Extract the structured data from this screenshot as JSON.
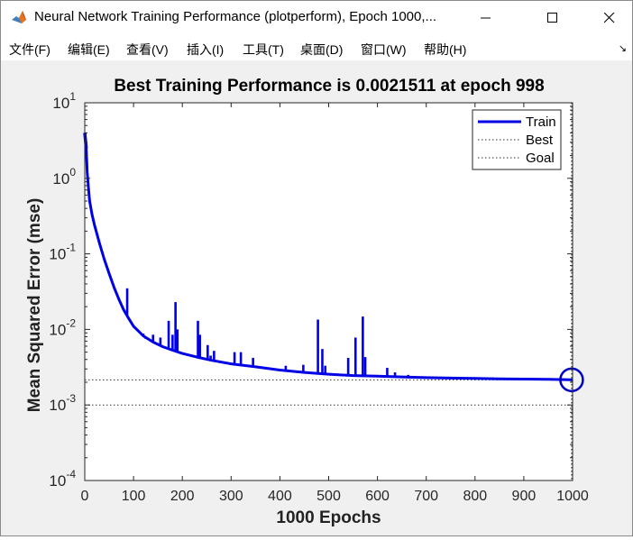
{
  "window": {
    "title": "Neural Network Training Performance (plotperform), Epoch 1000,...",
    "icon": "matlab-icon"
  },
  "menu": {
    "items": [
      "文件(F)",
      "编辑(E)",
      "查看(V)",
      "插入(I)",
      "工具(T)",
      "桌面(D)",
      "窗口(W)",
      "帮助(H)"
    ]
  },
  "colors": {
    "train": "#0000e6",
    "axes_bg": "#ffffff",
    "figure_bg": "#f0f0f0"
  },
  "chart_data": {
    "type": "line",
    "title": "Best Training Performance is 0.0021511 at epoch 998",
    "xlabel": "1000 Epochs",
    "ylabel": "Mean Squared Error  (mse)",
    "xlim": [
      0,
      1000
    ],
    "ylim": [
      0.0001,
      10
    ],
    "yscale": "log",
    "xticks": [
      0,
      100,
      200,
      300,
      400,
      500,
      600,
      700,
      800,
      900,
      1000
    ],
    "yticks": [
      {
        "base": "10",
        "exp": "1",
        "value": 10
      },
      {
        "base": "10",
        "exp": "0",
        "value": 1
      },
      {
        "base": "10",
        "exp": "-1",
        "value": 0.1
      },
      {
        "base": "10",
        "exp": "-2",
        "value": 0.01
      },
      {
        "base": "10",
        "exp": "-3",
        "value": 0.001
      },
      {
        "base": "10",
        "exp": "-4",
        "value": 0.0001
      }
    ],
    "legend": {
      "placement": "top-right",
      "entries": [
        "Train",
        "Best",
        "Goal"
      ]
    },
    "best": {
      "epoch": 998,
      "mse": 0.0021511
    },
    "goal": 0.001,
    "series": [
      {
        "name": "Train",
        "x": [
          0,
          3,
          5,
          8,
          10,
          15,
          20,
          30,
          40,
          50,
          60,
          70,
          80,
          90,
          100,
          120,
          140,
          160,
          180,
          200,
          230,
          260,
          300,
          350,
          400,
          450,
          500,
          550,
          600,
          650,
          700,
          750,
          800,
          850,
          900,
          950,
          998,
          1000
        ],
        "y": [
          4.0,
          2.5,
          1.2,
          0.7,
          0.5,
          0.33,
          0.24,
          0.14,
          0.085,
          0.055,
          0.036,
          0.025,
          0.018,
          0.014,
          0.011,
          0.0082,
          0.0068,
          0.0059,
          0.0053,
          0.0048,
          0.0043,
          0.0039,
          0.0035,
          0.0032,
          0.0029,
          0.0027,
          0.00255,
          0.00245,
          0.0024,
          0.00235,
          0.0023,
          0.00227,
          0.00224,
          0.00221,
          0.0022,
          0.00218,
          0.0021511,
          0.0021511
        ]
      }
    ],
    "spikes": [
      {
        "epoch": 87,
        "mse": 0.035
      },
      {
        "epoch": 120,
        "mse": 0.0088
      },
      {
        "epoch": 125,
        "mse": 0.0075
      },
      {
        "epoch": 140,
        "mse": 0.0085
      },
      {
        "epoch": 155,
        "mse": 0.0078
      },
      {
        "epoch": 172,
        "mse": 0.013
      },
      {
        "epoch": 180,
        "mse": 0.0085
      },
      {
        "epoch": 186,
        "mse": 0.023
      },
      {
        "epoch": 190,
        "mse": 0.01
      },
      {
        "epoch": 232,
        "mse": 0.013
      },
      {
        "epoch": 236,
        "mse": 0.0085
      },
      {
        "epoch": 252,
        "mse": 0.0062
      },
      {
        "epoch": 258,
        "mse": 0.0045
      },
      {
        "epoch": 265,
        "mse": 0.0052
      },
      {
        "epoch": 307,
        "mse": 0.005
      },
      {
        "epoch": 320,
        "mse": 0.005
      },
      {
        "epoch": 345,
        "mse": 0.0042
      },
      {
        "epoch": 412,
        "mse": 0.0033
      },
      {
        "epoch": 448,
        "mse": 0.0034
      },
      {
        "epoch": 478,
        "mse": 0.0135
      },
      {
        "epoch": 487,
        "mse": 0.0055
      },
      {
        "epoch": 493,
        "mse": 0.0033
      },
      {
        "epoch": 540,
        "mse": 0.0042
      },
      {
        "epoch": 555,
        "mse": 0.0078
      },
      {
        "epoch": 570,
        "mse": 0.0148
      },
      {
        "epoch": 575,
        "mse": 0.0043
      },
      {
        "epoch": 620,
        "mse": 0.0031
      },
      {
        "epoch": 636,
        "mse": 0.0027
      },
      {
        "epoch": 663,
        "mse": 0.0025
      }
    ]
  }
}
